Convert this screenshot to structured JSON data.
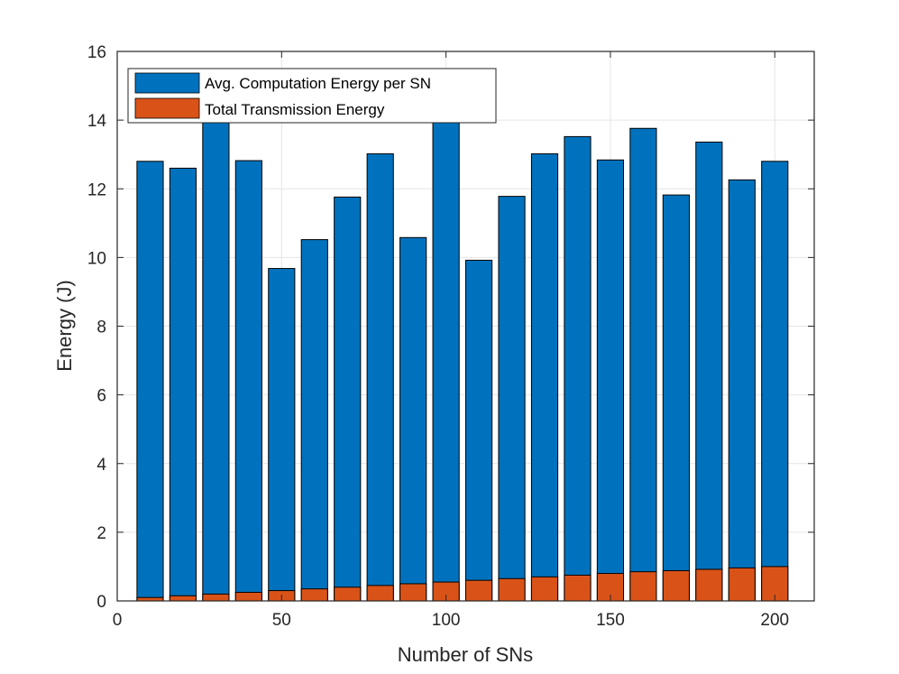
{
  "chart_data": {
    "type": "bar",
    "stacked": false,
    "overlapped": true,
    "title": "",
    "xlabel": "Number of SNs",
    "ylabel": "Energy (J)",
    "xlim": [
      0,
      212
    ],
    "ylim": [
      0,
      16
    ],
    "xticks": [
      0,
      50,
      100,
      150,
      200
    ],
    "yticks": [
      0,
      2,
      4,
      6,
      8,
      10,
      12,
      14,
      16
    ],
    "grid": true,
    "legend_position": "top-left",
    "x": [
      10,
      20,
      30,
      40,
      50,
      60,
      70,
      80,
      90,
      100,
      110,
      120,
      130,
      140,
      150,
      160,
      170,
      180,
      190,
      200
    ],
    "series": [
      {
        "name": "Avg. Computation Energy per SN",
        "color": "#0072BD",
        "values": [
          12.8,
          12.6,
          14.0,
          12.82,
          9.68,
          10.52,
          11.76,
          13.02,
          10.58,
          14.0,
          9.92,
          11.78,
          13.02,
          13.52,
          12.84,
          13.76,
          11.82,
          13.36,
          12.26,
          12.8
        ]
      },
      {
        "name": "Total Transmission Energy",
        "color": "#D95319",
        "values": [
          0.1,
          0.15,
          0.2,
          0.25,
          0.3,
          0.35,
          0.4,
          0.45,
          0.5,
          0.55,
          0.6,
          0.65,
          0.7,
          0.75,
          0.8,
          0.85,
          0.88,
          0.92,
          0.96,
          1.0
        ]
      }
    ]
  }
}
